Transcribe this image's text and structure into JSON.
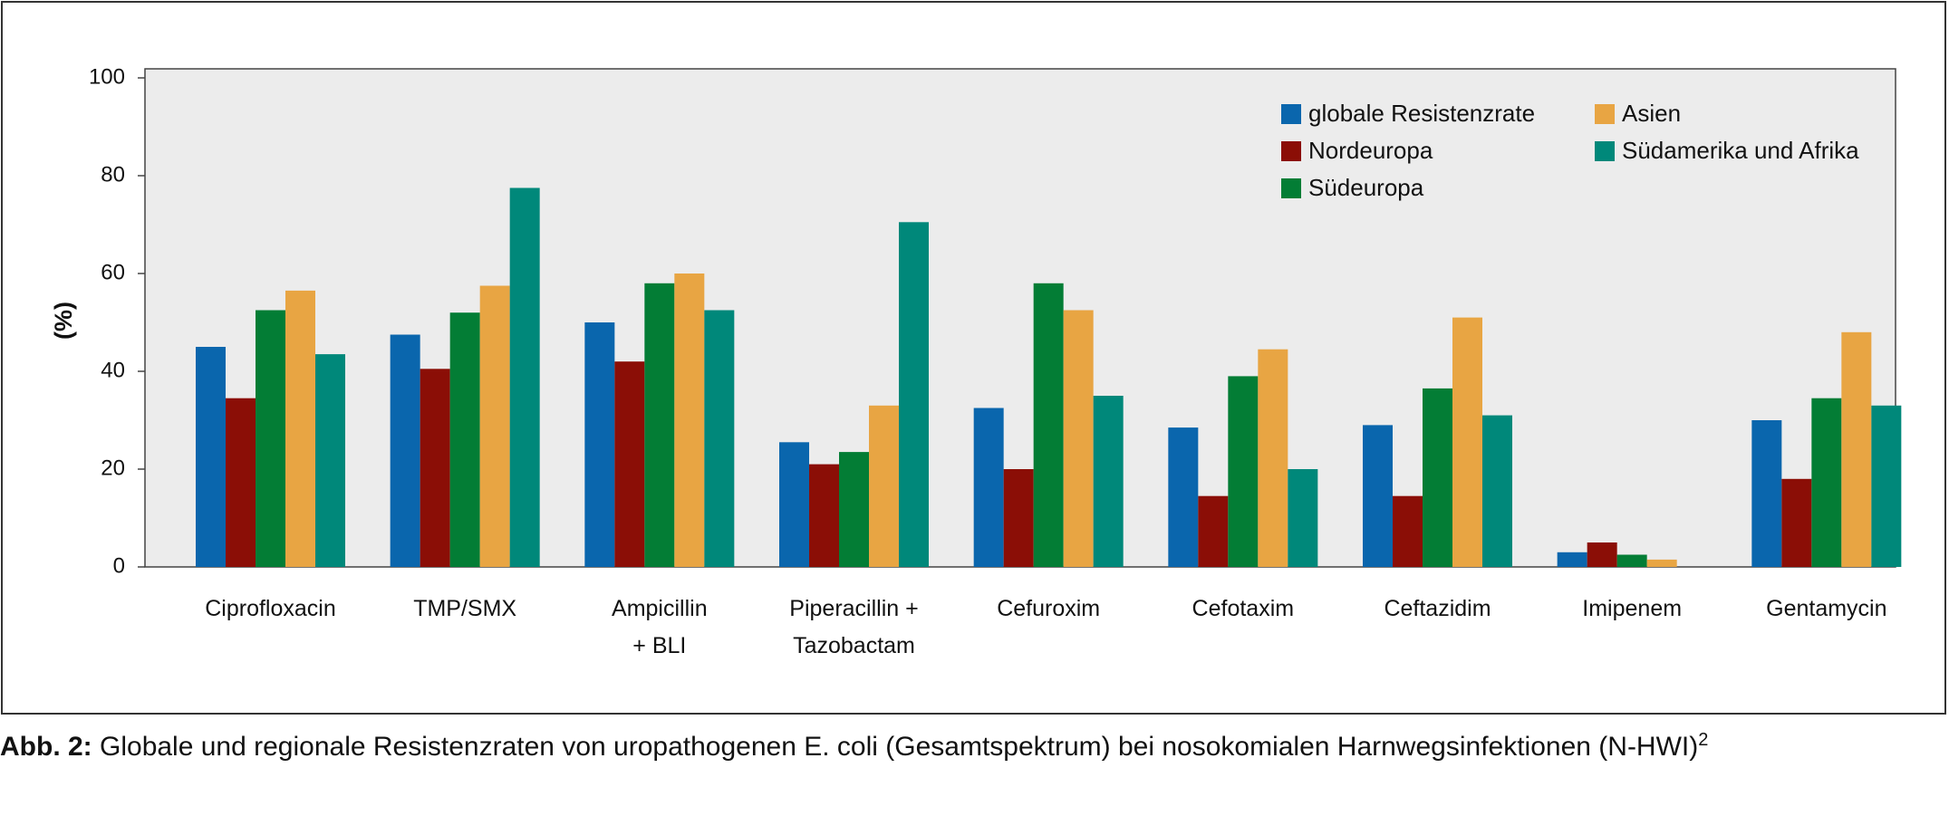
{
  "caption": {
    "prefix": "Abb. 2:",
    "text": " Globale und regionale Resistenzraten von uropathogenen E. coli (Gesamtspektrum) bei nosokomialen Harnwegsinfektionen (N-HWI)",
    "superscript": "2"
  },
  "chart_data": {
    "type": "bar",
    "ylabel": "(%)",
    "xlabel": "",
    "ylim": [
      0,
      100
    ],
    "yticks": [
      0,
      20,
      40,
      60,
      80,
      100
    ],
    "grid": false,
    "legend_position": "top-right",
    "categories": [
      [
        "Ciprofloxacin"
      ],
      [
        "TMP/SMX"
      ],
      [
        "Ampicillin",
        "+ BLI"
      ],
      [
        "Piperacillin +",
        "Tazobactam"
      ],
      [
        "Cefuroxim"
      ],
      [
        "Cefotaxim"
      ],
      [
        "Ceftazidim"
      ],
      [
        "Imipenem"
      ],
      [
        "Gentamycin"
      ]
    ],
    "series": [
      {
        "name": "globale Resistenzrate",
        "color": "#0a66ad",
        "values": [
          45,
          47.5,
          50,
          25.5,
          32.5,
          28.5,
          29,
          3,
          30
        ]
      },
      {
        "name": "Nordeuropa",
        "color": "#8b0e06",
        "values": [
          34.5,
          40.5,
          42,
          21,
          20,
          14.5,
          14.5,
          5,
          18
        ]
      },
      {
        "name": "Südeuropa",
        "color": "#037d35",
        "values": [
          52.5,
          52,
          58,
          23.5,
          58,
          39,
          36.5,
          2.5,
          34.5
        ]
      },
      {
        "name": "Asien",
        "color": "#e8a543",
        "values": [
          56.5,
          57.5,
          60,
          33,
          52.5,
          44.5,
          51,
          1.5,
          48
        ]
      },
      {
        "name": "Südamerika und Afrika",
        "color": "#00887a",
        "values": [
          43.5,
          77.5,
          52.5,
          70.5,
          35,
          20,
          31,
          null,
          33
        ]
      }
    ]
  }
}
